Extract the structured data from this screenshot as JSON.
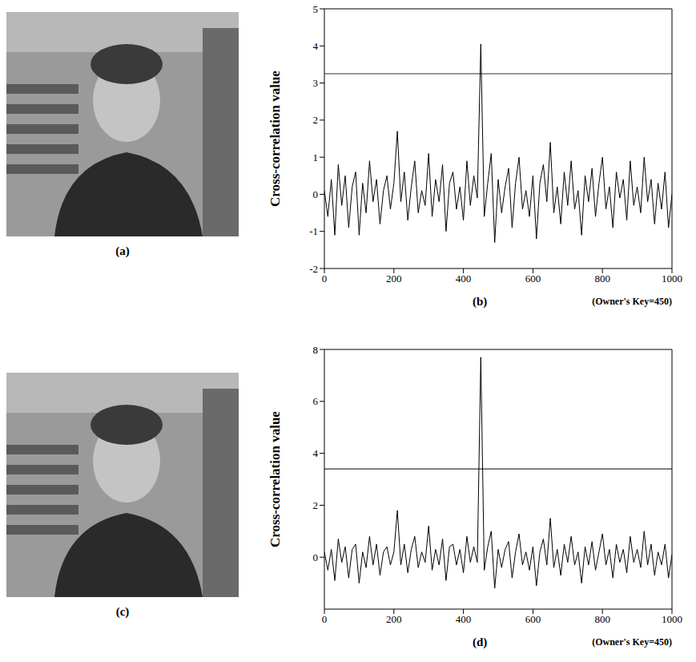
{
  "images": [
    {
      "label": "(a)"
    },
    {
      "label": "(c)"
    }
  ],
  "chart_data": [
    {
      "type": "line",
      "panel_label": "(b)",
      "ylabel": "Cross-correlation value",
      "xlabel": "(Owner's Key=450)",
      "color": "#000000",
      "grid": false,
      "xlim": [
        0,
        1000
      ],
      "xticks": [
        0,
        200,
        400,
        600,
        800,
        1000
      ],
      "ylim": [
        -2,
        5
      ],
      "yticks": [
        -2,
        -1,
        0,
        1,
        2,
        3,
        4,
        5
      ],
      "threshold": 3.25,
      "x": [
        0,
        10,
        20,
        30,
        40,
        50,
        60,
        70,
        80,
        90,
        100,
        110,
        120,
        130,
        140,
        150,
        160,
        170,
        180,
        190,
        200,
        210,
        220,
        230,
        240,
        250,
        260,
        270,
        280,
        290,
        300,
        310,
        320,
        330,
        340,
        350,
        360,
        370,
        380,
        390,
        400,
        410,
        420,
        430,
        440,
        450,
        460,
        470,
        480,
        490,
        500,
        510,
        520,
        530,
        540,
        550,
        560,
        570,
        580,
        590,
        600,
        610,
        620,
        630,
        640,
        650,
        660,
        670,
        680,
        690,
        700,
        710,
        720,
        730,
        740,
        750,
        760,
        770,
        780,
        790,
        800,
        810,
        820,
        830,
        840,
        850,
        860,
        870,
        880,
        890,
        900,
        910,
        920,
        930,
        940,
        950,
        960,
        970,
        980,
        990,
        1000
      ],
      "values": [
        0.1,
        -0.6,
        0.4,
        -1.1,
        0.8,
        -0.3,
        0.5,
        -0.9,
        0.2,
        0.6,
        -1.1,
        0.3,
        -0.5,
        0.9,
        -0.2,
        0.4,
        -0.8,
        0.1,
        0.5,
        -0.4,
        0.3,
        1.7,
        -0.2,
        0.6,
        -0.7,
        0.2,
        0.9,
        -0.5,
        0.1,
        -0.3,
        1.1,
        -0.6,
        0.4,
        -0.2,
        0.8,
        -1.0,
        0.3,
        0.6,
        -0.4,
        0.2,
        -0.7,
        0.9,
        -0.3,
        0.5,
        -0.1,
        4.05,
        -0.6,
        0.3,
        1.1,
        -1.3,
        0.4,
        -0.5,
        0.2,
        0.7,
        -0.9,
        0.3,
        1.0,
        -0.4,
        0.1,
        -0.6,
        0.5,
        -1.2,
        0.3,
        0.8,
        -0.2,
        1.4,
        -0.5,
        0.2,
        -0.8,
        0.6,
        -0.3,
        0.9,
        -0.4,
        0.1,
        -1.1,
        0.5,
        -0.2,
        0.7,
        -0.6,
        0.3,
        1.0,
        -0.4,
        0.2,
        -0.9,
        0.6,
        -0.1,
        0.4,
        -0.7,
        0.9,
        -0.3,
        0.2,
        -0.5,
        1.0,
        -0.2,
        0.4,
        -0.8,
        0.3,
        -0.4,
        0.6,
        -0.9,
        0.0
      ]
    },
    {
      "type": "line",
      "panel_label": "(d)",
      "ylabel": "Cross-correlation value",
      "xlabel": "(Owner's Key=450)",
      "color": "#000000",
      "grid": false,
      "xlim": [
        0,
        1000
      ],
      "xticks": [
        0,
        200,
        400,
        600,
        800,
        1000
      ],
      "ylim": [
        -2,
        8
      ],
      "yticks": [
        0,
        2,
        4,
        6,
        8
      ],
      "threshold": 3.4,
      "x": [
        0,
        10,
        20,
        30,
        40,
        50,
        60,
        70,
        80,
        90,
        100,
        110,
        120,
        130,
        140,
        150,
        160,
        170,
        180,
        190,
        200,
        210,
        220,
        230,
        240,
        250,
        260,
        270,
        280,
        290,
        300,
        310,
        320,
        330,
        340,
        350,
        360,
        370,
        380,
        390,
        400,
        410,
        420,
        430,
        440,
        450,
        460,
        470,
        480,
        490,
        500,
        510,
        520,
        530,
        540,
        550,
        560,
        570,
        580,
        590,
        600,
        610,
        620,
        630,
        640,
        650,
        660,
        670,
        680,
        690,
        700,
        710,
        720,
        730,
        740,
        750,
        760,
        770,
        780,
        790,
        800,
        810,
        820,
        830,
        840,
        850,
        860,
        870,
        880,
        890,
        900,
        910,
        920,
        930,
        940,
        950,
        960,
        970,
        980,
        990,
        1000
      ],
      "values": [
        0.2,
        -0.5,
        0.3,
        -0.9,
        0.7,
        -0.2,
        0.4,
        -0.8,
        0.3,
        0.5,
        -1.0,
        0.2,
        -0.4,
        0.8,
        -0.3,
        0.5,
        -0.7,
        0.2,
        0.4,
        -0.3,
        0.2,
        1.8,
        -0.3,
        0.5,
        -0.6,
        0.3,
        0.8,
        -0.4,
        0.2,
        -0.2,
        1.2,
        -0.5,
        0.3,
        -0.3,
        0.7,
        -0.9,
        0.4,
        0.5,
        -0.3,
        0.3,
        -0.6,
        0.8,
        -0.2,
        0.4,
        -0.2,
        7.7,
        -0.5,
        0.4,
        1.0,
        -1.2,
        0.3,
        -0.4,
        0.3,
        0.6,
        -0.8,
        0.2,
        0.9,
        -0.3,
        0.2,
        -0.5,
        0.4,
        -1.1,
        0.2,
        0.7,
        -0.3,
        1.5,
        -0.4,
        0.3,
        -0.7,
        0.5,
        -0.2,
        0.8,
        -0.3,
        0.2,
        -1.0,
        0.4,
        -0.3,
        0.6,
        -0.5,
        0.2,
        0.9,
        -0.3,
        0.3,
        -0.8,
        0.5,
        -0.2,
        0.3,
        -0.6,
        0.8,
        -0.2,
        0.3,
        -0.4,
        1.0,
        -0.3,
        0.5,
        -0.7,
        0.2,
        -0.3,
        0.5,
        -0.8,
        0.1
      ]
    }
  ]
}
